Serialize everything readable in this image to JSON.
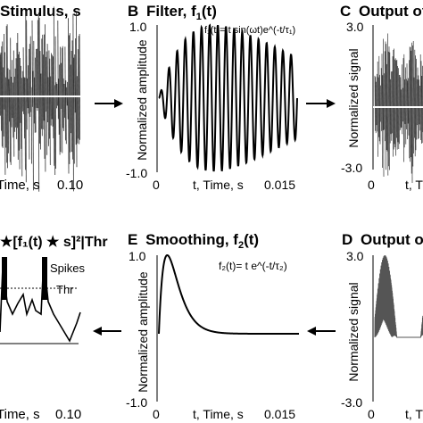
{
  "panels": {
    "A": {
      "title": "Stimulus, s",
      "xlabel": "Time, s",
      "xtick_right": "0.10"
    },
    "B": {
      "letter": "B",
      "title": "Filter, f",
      "title_sub": "1",
      "title_end": "(t)",
      "ylabel": "Normalized amplitude",
      "y_top": "1.0",
      "y_bottom": "-1.0",
      "xlabel": "t, Time, s",
      "xtick_left": "0",
      "xtick_right": "0.015",
      "equation": "f₁(t)= t sin(ωt)e^(-t/τ₁)"
    },
    "C": {
      "letter": "C",
      "title": "Output of",
      "ylabel": "Normalized signal",
      "y_top": "3.0",
      "y_bottom": "-3.0",
      "xtick_left": "0",
      "xlabel": "t, T"
    },
    "D": {
      "letter": "D",
      "title": "Output of",
      "ylabel": "Normalized signal",
      "y_top": "3.0",
      "y_bottom": "-3.0",
      "xtick_left": "0",
      "xlabel": "t, T"
    },
    "E": {
      "letter": "E",
      "title": "Smoothing, f",
      "title_sub": "2",
      "title_end": "(t)",
      "ylabel": "Normalized amplitude",
      "y_top": "1.0",
      "y_bottom": "-1.0",
      "xlabel": "t, Time, s",
      "xtick_left": "0",
      "xtick_right": "0.015",
      "equation": "f₂(t)= t e^(-t/τ₂)"
    },
    "F": {
      "title": "★[f₁(t) ★ s]²|Thr",
      "spikes_label": "Spikes",
      "thr_label": "Thr",
      "xlabel": "Time, s",
      "xtick_right": "0.10"
    }
  },
  "chart_data": [
    {
      "type": "line",
      "panel": "B",
      "function": "t*sin(w*t)*exp(-t/tau1), normalized",
      "x_range": [
        0,
        0.015
      ],
      "ylim": [
        -1.0,
        1.0
      ],
      "oscillation_cycles": 17,
      "peak_x": 0.006
    },
    {
      "type": "line",
      "panel": "E",
      "function": "t*exp(-t/tau2), normalized",
      "x_range": [
        0,
        0.015
      ],
      "ylim": [
        -1.0,
        1.0
      ],
      "peak_x": 0.0009
    }
  ],
  "colors": {
    "line": "#000000",
    "noise": "#444444",
    "baseline_white": "#ffffff"
  }
}
